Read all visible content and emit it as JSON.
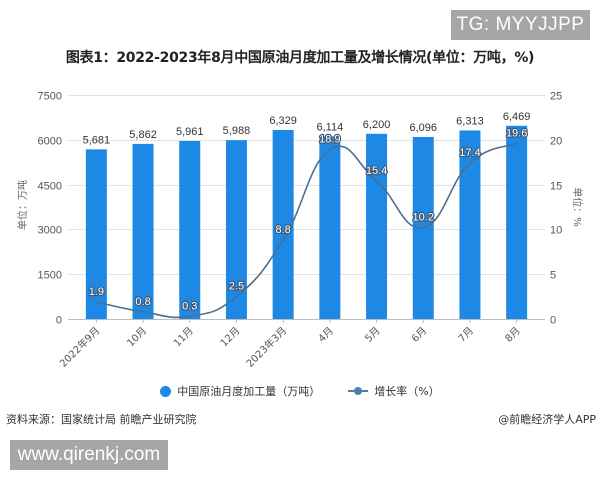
{
  "watermark_top": "TG: MYYJJPP",
  "watermark_bottom": "www.qirenkj.com",
  "title": "图表1：2022-2023年8月中国原油月度加工量及增长情况(单位：万吨，%)",
  "source": "资料来源：国家统计局 前瞻产业研究院",
  "credit": "@前瞻经济学人APP",
  "legend": {
    "bar": "中国原油月度加工量（万吨）",
    "line": "增长率（%）"
  },
  "axes": {
    "left_title": "单位：万吨",
    "right_title": "单位：%",
    "left_ticks": [
      "0",
      "1500",
      "3000",
      "4500",
      "6000",
      "7500"
    ],
    "right_ticks": [
      "0",
      "5",
      "10",
      "15",
      "20",
      "25"
    ]
  },
  "colors": {
    "bar": "#1e88e5",
    "line": "#4a6f92",
    "grid": "#e3e3e3"
  },
  "chart_data": {
    "type": "bar+line",
    "title": "图表1：2022-2023年8月中国原油月度加工量及增长情况(单位：万吨，%)",
    "categories": [
      "2022年9月",
      "10月",
      "11月",
      "12月",
      "2023年3月",
      "4月",
      "5月",
      "6月",
      "7月",
      "8月"
    ],
    "series": [
      {
        "name": "中国原油月度加工量（万吨）",
        "type": "bar",
        "axis": "left",
        "values": [
          5681,
          5862,
          5961,
          5988,
          6329,
          6114,
          6200,
          6096,
          6313,
          6469
        ],
        "labels": [
          "5,681",
          "5,862",
          "5,961",
          "5,988",
          "6,329",
          "6,114",
          "6,200",
          "6,096",
          "6,313",
          "6,469"
        ]
      },
      {
        "name": "增长率（%）",
        "type": "line",
        "axis": "right",
        "values": [
          1.9,
          0.8,
          0.3,
          2.5,
          8.8,
          18.9,
          15.4,
          10.2,
          17.4,
          19.6
        ],
        "labels": [
          "1.9",
          "0.8",
          "0.3",
          "2.5",
          "8.8",
          "18.9",
          "15.4",
          "10.2",
          "17.4",
          "19.6"
        ]
      }
    ],
    "ylabel": "单位：万吨",
    "y2label": "单位：%",
    "ylim": [
      0,
      7500
    ],
    "y2lim": [
      0,
      25
    ],
    "yticks": [
      0,
      1500,
      3000,
      4500,
      6000,
      7500
    ],
    "y2ticks": [
      0,
      5,
      10,
      15,
      20,
      25
    ],
    "grid": true,
    "legend_position": "bottom"
  }
}
